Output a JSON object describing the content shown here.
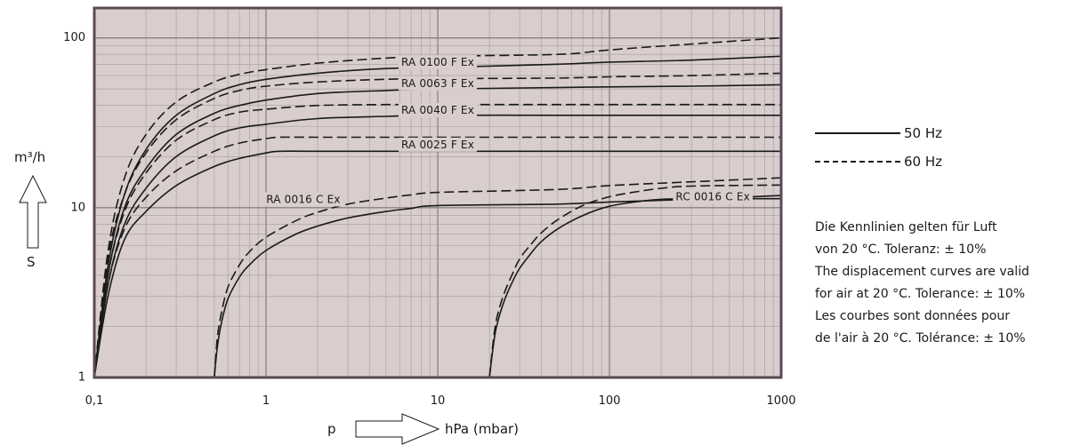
{
  "chart_data": {
    "type": "line",
    "title": "",
    "xscale": "log",
    "yscale": "log",
    "xlim": [
      0.1,
      1000
    ],
    "ylim": [
      1,
      150
    ],
    "grid": true,
    "x_ticks": [
      "0,1",
      "1",
      "10",
      "100",
      "1000"
    ],
    "y_ticks": [
      "1",
      "10",
      "100"
    ],
    "xlabel": {
      "symbol": "p",
      "unit": "hPa (mbar)"
    },
    "ylabel": {
      "symbol": "S",
      "unit": "m³/h"
    },
    "legend": {
      "placement": "right",
      "entries": [
        {
          "label": "50 Hz",
          "style": "solid"
        },
        {
          "label": "60 Hz",
          "style": "dashed"
        }
      ]
    },
    "series": [
      {
        "model": "RA 0100 F Ex",
        "frequency": "50 Hz",
        "x": [
          0.1,
          0.12,
          0.15,
          0.2,
          0.3,
          0.5,
          0.7,
          1,
          2,
          5,
          10,
          50,
          100,
          300,
          1000
        ],
        "y": [
          1,
          4.5,
          12,
          22,
          35,
          47,
          53,
          57,
          62,
          66,
          67,
          70,
          72,
          74,
          78
        ]
      },
      {
        "model": "RA 0100 F Ex",
        "frequency": "60 Hz",
        "x": [
          0.1,
          0.12,
          0.15,
          0.2,
          0.3,
          0.5,
          0.7,
          1,
          2,
          5,
          10,
          50,
          100,
          300,
          1000
        ],
        "y": [
          1,
          5.5,
          15,
          27,
          42,
          55,
          61,
          65,
          71,
          76,
          78,
          80,
          85,
          92,
          100
        ]
      },
      {
        "model": "RA 0063 F Ex",
        "frequency": "50 Hz",
        "x": [
          0.1,
          0.12,
          0.15,
          0.2,
          0.3,
          0.5,
          0.7,
          1,
          2,
          5,
          10,
          50,
          100,
          300,
          1000
        ],
        "y": [
          1,
          4,
          10,
          17,
          27,
          36,
          40,
          43,
          47,
          49,
          50,
          51,
          51.5,
          52,
          53
        ]
      },
      {
        "model": "RA 0063 F Ex",
        "frequency": "60 Hz",
        "x": [
          0.1,
          0.12,
          0.15,
          0.2,
          0.3,
          0.5,
          0.7,
          1,
          2,
          5,
          10,
          50,
          100,
          300,
          1000
        ],
        "y": [
          1,
          5,
          12,
          21,
          33,
          44,
          49,
          52,
          55,
          57,
          57.5,
          58,
          59,
          60,
          62
        ]
      },
      {
        "model": "RA 0040 F Ex",
        "frequency": "50 Hz",
        "x": [
          0.1,
          0.12,
          0.15,
          0.2,
          0.3,
          0.5,
          0.7,
          1,
          2,
          5,
          10,
          50,
          100,
          300,
          1000
        ],
        "y": [
          1,
          3.5,
          8,
          13,
          20,
          26.5,
          29.5,
          31,
          33.5,
          34.5,
          35,
          35,
          35,
          35,
          35
        ]
      },
      {
        "model": "RA 0040 F Ex",
        "frequency": "60 Hz",
        "x": [
          0.1,
          0.12,
          0.15,
          0.2,
          0.3,
          0.5,
          0.7,
          1,
          2,
          5,
          10,
          50,
          100,
          300,
          1000
        ],
        "y": [
          1,
          4,
          9.5,
          16,
          25,
          33,
          36.5,
          38,
          40,
          40.5,
          40.5,
          40.5,
          40.5,
          40.5,
          40.5
        ]
      },
      {
        "model": "RA 0025 F Ex",
        "frequency": "50 Hz",
        "x": [
          0.1,
          0.12,
          0.15,
          0.2,
          0.3,
          0.5,
          0.7,
          1,
          1.2,
          2,
          10,
          100,
          1000
        ],
        "y": [
          1,
          3,
          6.5,
          9.5,
          13.5,
          17.5,
          19.5,
          21,
          21.5,
          21.5,
          21.5,
          21.5,
          21.5
        ]
      },
      {
        "model": "RA 0025 F Ex",
        "frequency": "60 Hz",
        "x": [
          0.1,
          0.12,
          0.15,
          0.2,
          0.3,
          0.5,
          0.7,
          1,
          1.2,
          2,
          10,
          100,
          1000
        ],
        "y": [
          1,
          3.5,
          7.5,
          11.5,
          16.5,
          21.5,
          24,
          25.5,
          26,
          26,
          26,
          26,
          26
        ]
      },
      {
        "model": "RA 0016 C Ex",
        "frequency": "50 Hz",
        "x": [
          0.5,
          0.52,
          0.55,
          0.6,
          0.7,
          0.8,
          1,
          1.5,
          2,
          3,
          5,
          7,
          10,
          50,
          100,
          300,
          1000
        ],
        "y": [
          1,
          1.5,
          2.1,
          2.9,
          3.9,
          4.6,
          5.6,
          7,
          7.8,
          8.7,
          9.5,
          9.9,
          10.3,
          10.5,
          10.8,
          11.2,
          11.8
        ]
      },
      {
        "model": "RA 0016 C Ex",
        "frequency": "60 Hz",
        "x": [
          0.5,
          0.52,
          0.55,
          0.6,
          0.7,
          0.8,
          1,
          1.5,
          2,
          3,
          5,
          7,
          10,
          50,
          100,
          300,
          1000
        ],
        "y": [
          1,
          1.7,
          2.4,
          3.4,
          4.6,
          5.5,
          6.7,
          8.4,
          9.4,
          10.5,
          11.4,
          11.9,
          12.3,
          12.8,
          13.5,
          14.2,
          15
        ]
      },
      {
        "model": "RC 0016 C Ex",
        "frequency": "50 Hz",
        "x": [
          20,
          21,
          22,
          24,
          27,
          30,
          35,
          40,
          50,
          70,
          100,
          150,
          200,
          300,
          1000
        ],
        "y": [
          1,
          1.5,
          2,
          2.7,
          3.6,
          4.4,
          5.4,
          6.3,
          7.5,
          9,
          10.2,
          10.9,
          11.2,
          11.3,
          11.3
        ]
      },
      {
        "model": "RC 0016 C Ex",
        "frequency": "60 Hz",
        "x": [
          20,
          21,
          22,
          24,
          27,
          30,
          35,
          40,
          50,
          70,
          100,
          150,
          200,
          300,
          1000
        ],
        "y": [
          1,
          1.6,
          2.2,
          3,
          4,
          5,
          6.1,
          7.1,
          8.5,
          10.3,
          11.6,
          12.5,
          13,
          13.4,
          13.6
        ]
      }
    ],
    "annotations": [
      {
        "text": "RA 0100 F Ex",
        "x": 10,
        "y": 72
      },
      {
        "text": "RA 0063 F Ex",
        "x": 10,
        "y": 54
      },
      {
        "text": "RA 0040 F Ex",
        "x": 10,
        "y": 37.5
      },
      {
        "text": "RA 0025 F Ex",
        "x": 10,
        "y": 23.5
      },
      {
        "text": "RA 0016 C Ex",
        "x": 1.65,
        "y": 11.2
      },
      {
        "text": "RC 0016 C Ex",
        "x": 400,
        "y": 11.6
      }
    ]
  },
  "notes": [
    "Die Kennlinien gelten für Luft",
    "von 20 °C. Toleranz: ± 10%",
    "The displacement curves are valid",
    "for air at 20 °C. Tolerance: ± 10%",
    "Les courbes sont données pour",
    "de l'air à 20 °C. Tolérance: ± 10%"
  ],
  "colors": {
    "plot_background": "#d9cdcd",
    "plot_frame": "#5a4a55",
    "curves": "#1a1a1a"
  },
  "icons": {
    "y_arrow": "up-arrow-outline",
    "x_arrow": "right-arrow-outline"
  }
}
